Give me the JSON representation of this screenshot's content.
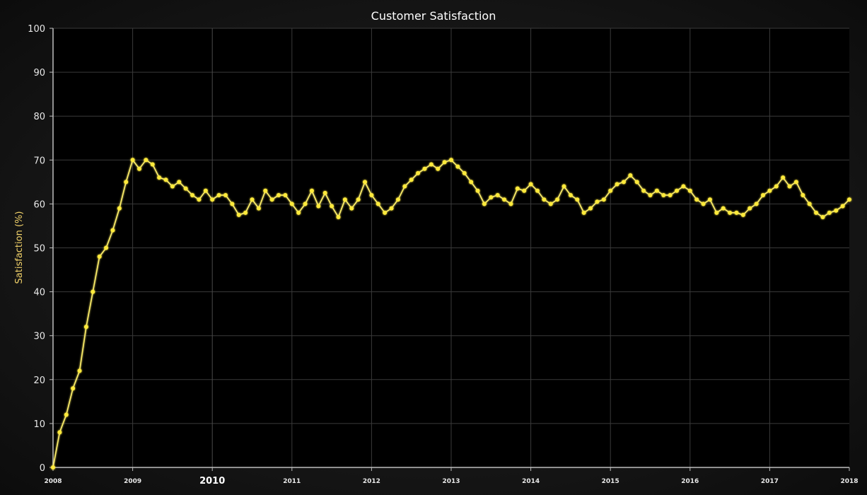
{
  "chart_data": {
    "type": "line",
    "title": "Customer Satisfaction",
    "xlabel": "",
    "ylabel": "Satisfaction (%)",
    "xlim": [
      2008,
      2018
    ],
    "ylim": [
      0,
      100
    ],
    "yticks": [
      0,
      10,
      20,
      30,
      40,
      50,
      60,
      70,
      80,
      90,
      100
    ],
    "xticks": [
      {
        "value": 2008,
        "label": "2008",
        "major": false
      },
      {
        "value": 2009,
        "label": "2009",
        "major": false
      },
      {
        "value": 2010,
        "label": "2010",
        "major": true
      },
      {
        "value": 2011,
        "label": "2011",
        "major": false
      },
      {
        "value": 2012,
        "label": "2012",
        "major": false
      },
      {
        "value": 2013,
        "label": "2013",
        "major": false
      },
      {
        "value": 2014,
        "label": "2014",
        "major": false
      },
      {
        "value": 2015,
        "label": "2015",
        "major": false
      },
      {
        "value": 2016,
        "label": "2016",
        "major": false
      },
      {
        "value": 2017,
        "label": "2017",
        "major": false
      },
      {
        "value": 2018,
        "label": "2018",
        "major": false
      }
    ],
    "grid": true,
    "colors": {
      "line": "#fff06a",
      "marker": "#ffea3a",
      "grid": "#3a3a3a",
      "axis": "#bdbdbd"
    },
    "x_start": 2008,
    "x_step_months": 1,
    "series": [
      {
        "values": [
          0,
          8,
          12,
          18,
          22,
          32,
          40,
          48,
          50,
          54,
          59,
          65,
          70,
          68,
          70,
          69,
          66,
          65.5,
          64,
          65,
          63.5,
          62,
          61,
          63,
          61,
          62,
          62,
          60,
          57.5,
          58,
          61,
          59,
          63,
          61,
          62,
          62,
          60,
          58,
          60,
          63,
          59.5,
          62.5,
          59.5,
          57,
          61,
          59,
          61,
          65,
          62,
          60,
          58,
          59,
          61,
          64,
          65.5,
          67,
          68,
          69,
          68,
          69.5,
          70,
          68.5,
          67,
          65,
          63,
          60,
          61.5,
          62,
          61,
          60,
          63.5,
          63,
          64.5,
          63,
          61,
          60,
          61,
          64,
          62,
          61,
          58,
          59,
          60.5,
          61,
          63,
          64.5,
          65,
          66.5,
          65,
          63,
          62,
          63,
          62,
          62,
          63,
          64,
          63,
          61,
          60,
          61,
          58,
          59,
          58,
          58,
          57.5,
          59,
          60,
          62,
          63,
          64,
          66,
          64,
          65,
          62,
          60,
          58,
          57,
          58,
          58.5,
          59.5,
          61
        ]
      }
    ]
  }
}
